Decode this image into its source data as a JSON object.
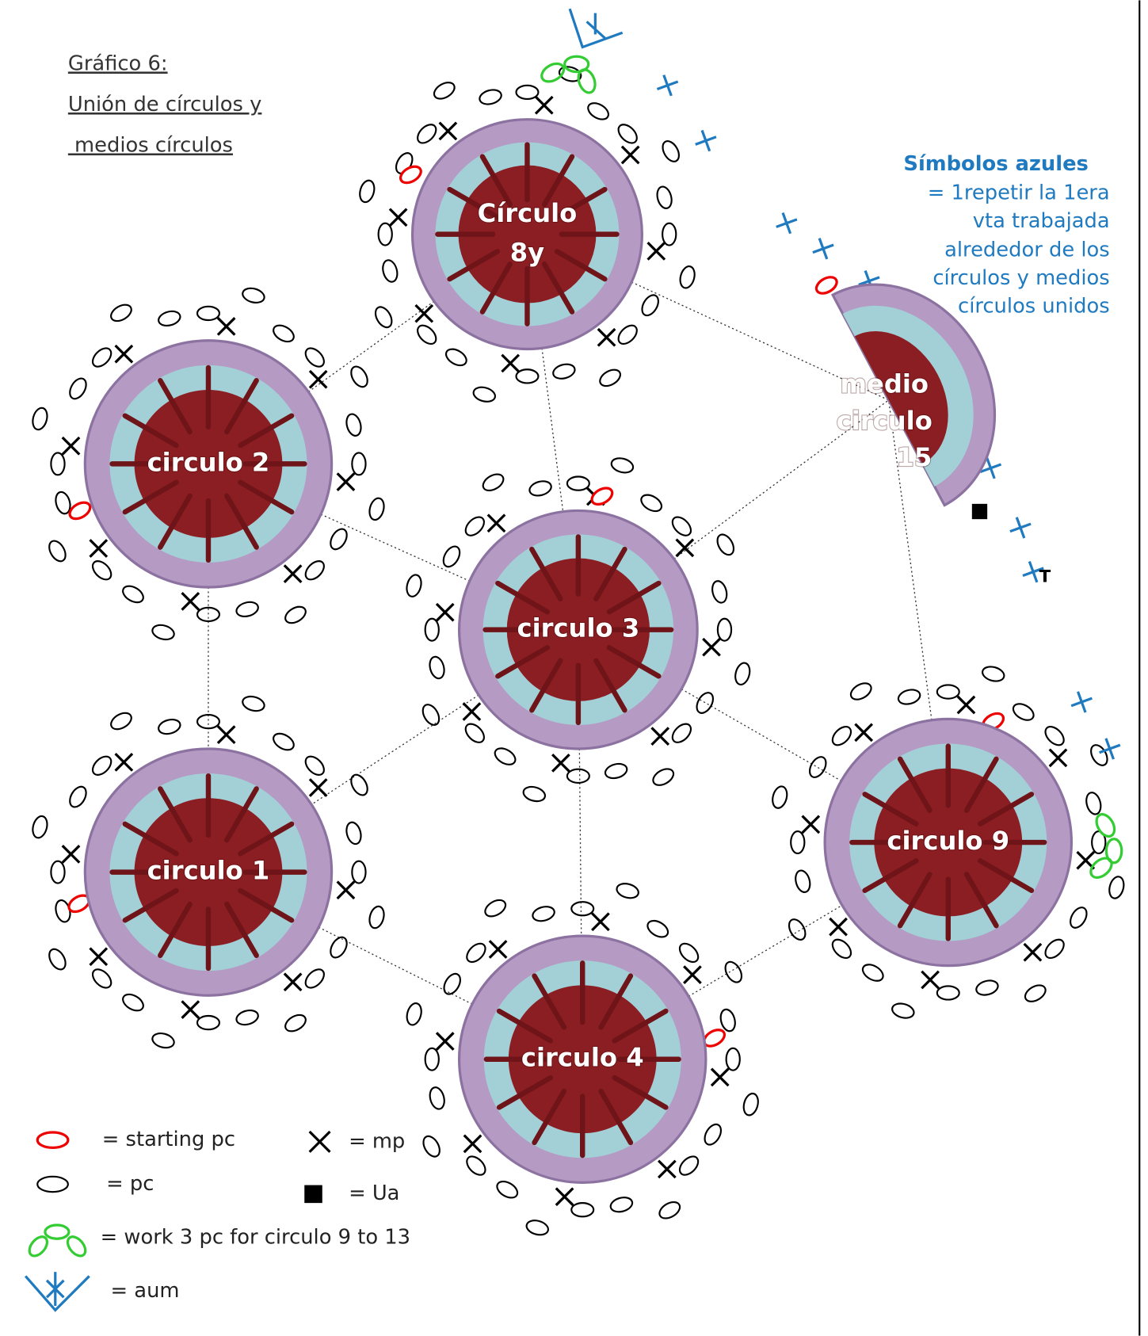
{
  "header": {
    "lines": [
      "Gráfico 6:",
      "Unión de círculos y",
      " medios círculos"
    ]
  },
  "motifs": [
    {
      "lines": [
        "Círculo",
        "8y"
      ]
    },
    {
      "lines": [
        "circulo 2"
      ]
    },
    {
      "lines": [
        "circulo 3"
      ]
    },
    {
      "lines": [
        "circulo 1"
      ]
    },
    {
      "lines": [
        "circulo 4"
      ]
    },
    {
      "lines": [
        "circulo 9"
      ]
    },
    {
      "lines": [
        "medio",
        "circulo",
        "15"
      ]
    }
  ],
  "marker": "T",
  "note": {
    "title": "Símbolos azules",
    "lines": [
      "= 1repetir la 1era",
      "vta trabajada",
      "alrededor de los",
      "círculos y medios",
      "círculos unidos"
    ]
  },
  "legend": [
    {
      "text": "= starting pc"
    },
    {
      "text": "= pc"
    },
    {
      "text": "= work 3 pc for circulo 9 to 13"
    },
    {
      "text": "= aum"
    },
    {
      "text": "= mp"
    },
    {
      "text": "= Ua"
    }
  ]
}
